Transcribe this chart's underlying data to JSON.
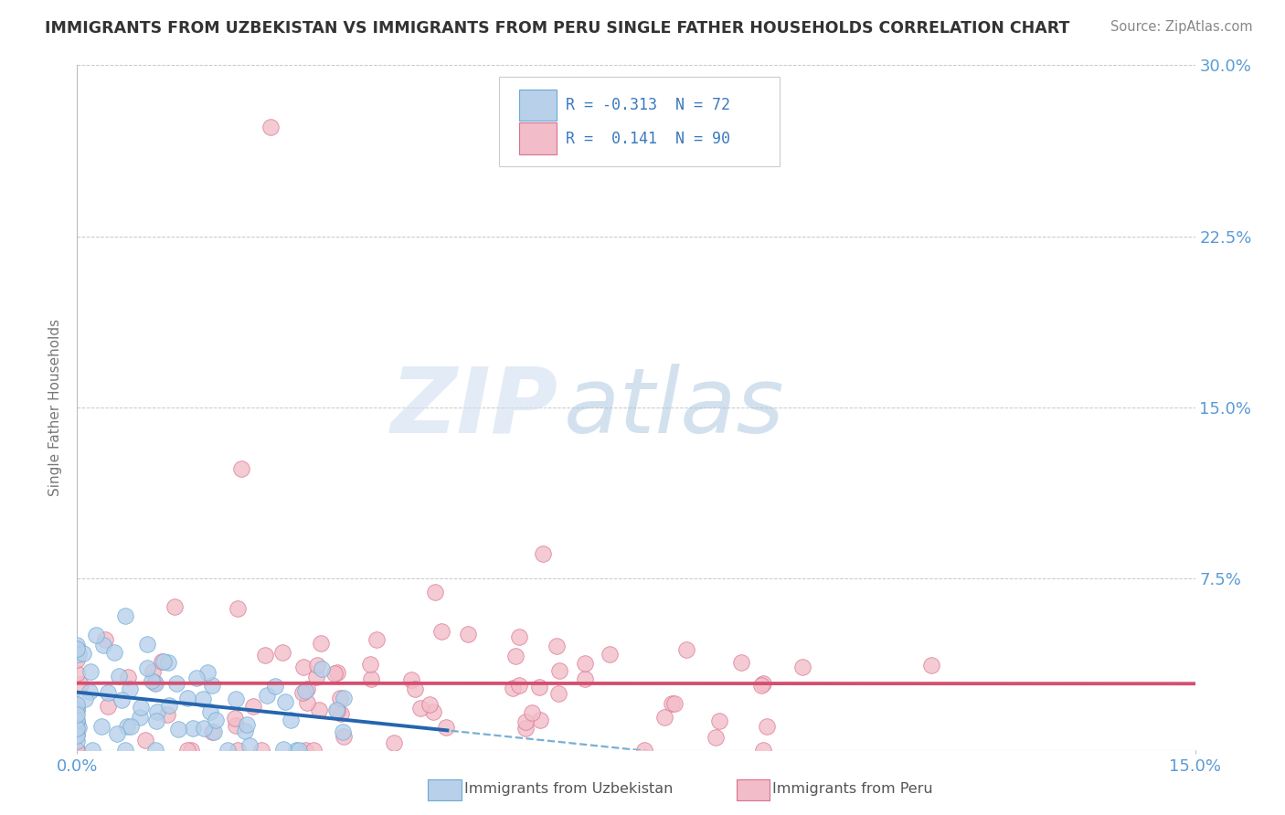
{
  "title": "IMMIGRANTS FROM UZBEKISTAN VS IMMIGRANTS FROM PERU SINGLE FATHER HOUSEHOLDS CORRELATION CHART",
  "source_text": "Source: ZipAtlas.com",
  "ylabel": "Single Father Households",
  "xlim": [
    0.0,
    0.15
  ],
  "ylim": [
    0.0,
    0.3
  ],
  "yticks": [
    0.0,
    0.075,
    0.15,
    0.225,
    0.3
  ],
  "ytick_labels": [
    "",
    "7.5%",
    "15.0%",
    "22.5%",
    "30.0%"
  ],
  "xtick_labels": [
    "0.0%",
    "15.0%"
  ],
  "legend_R_uzbekistan": "-0.313",
  "legend_N_uzbekistan": "72",
  "legend_R_peru": "0.141",
  "legend_N_peru": "90",
  "uzbekistan_color": "#b8d0ea",
  "uzbekistan_edge": "#6aaad4",
  "peru_color": "#f2bdc8",
  "peru_edge": "#d97090",
  "trend_uzbekistan_solid_color": "#2565ae",
  "trend_uzbekistan_dash_color": "#7aafd4",
  "trend_peru_color": "#d45070",
  "background_color": "#ffffff",
  "grid_color": "#c8c8c8",
  "title_color": "#333333",
  "axis_label_color": "#5b9bd5",
  "source_color": "#888888"
}
